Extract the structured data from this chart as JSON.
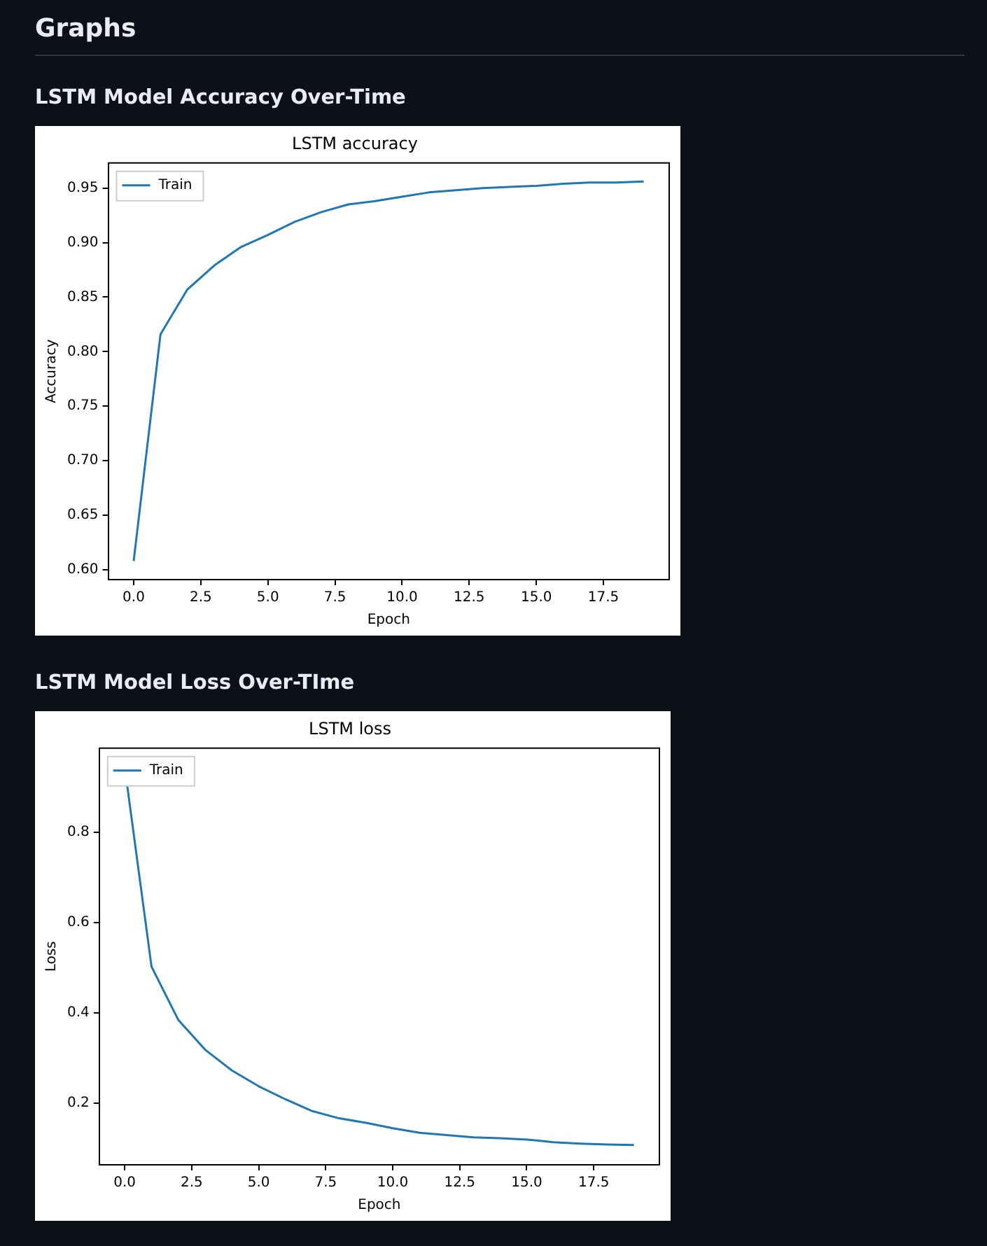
{
  "chart_data": [
    {
      "type": "line",
      "title": "LSTM accuracy",
      "subtitle": "LSTM Model Accuracy Over-Time",
      "annotations": [
        "Graphs"
      ],
      "xlabel": "Epoch",
      "ylabel": "Accuracy",
      "x": [
        0,
        1,
        2,
        3,
        4,
        5,
        6,
        7,
        8,
        9,
        10,
        11,
        12,
        13,
        14,
        15,
        16,
        17,
        18,
        19
      ],
      "series": [
        {
          "name": "Train",
          "color": "#1f77b4",
          "values": [
            0.608,
            0.816,
            0.857,
            0.879,
            0.896,
            0.907,
            0.919,
            0.928,
            0.935,
            0.938,
            0.942,
            0.946,
            0.948,
            0.95,
            0.951,
            0.952,
            0.954,
            0.955,
            0.955,
            0.956
          ]
        }
      ],
      "xlim": [
        -0.95,
        19.95
      ],
      "ylim": [
        0.591,
        0.973
      ],
      "xticks": [
        {
          "value": 0,
          "label": "0.0"
        },
        {
          "value": 2.5,
          "label": "2.5"
        },
        {
          "value": 5,
          "label": "5.0"
        },
        {
          "value": 7.5,
          "label": "7.5"
        },
        {
          "value": 10,
          "label": "10.0"
        },
        {
          "value": 12.5,
          "label": "12.5"
        },
        {
          "value": 15,
          "label": "15.0"
        },
        {
          "value": 17.5,
          "label": "17.5"
        }
      ],
      "yticks": [
        {
          "value": 0.6,
          "label": "0.60"
        },
        {
          "value": 0.65,
          "label": "0.65"
        },
        {
          "value": 0.7,
          "label": "0.70"
        },
        {
          "value": 0.75,
          "label": "0.75"
        },
        {
          "value": 0.8,
          "label": "0.80"
        },
        {
          "value": 0.85,
          "label": "0.85"
        },
        {
          "value": 0.9,
          "label": "0.90"
        },
        {
          "value": 0.95,
          "label": "0.95"
        }
      ],
      "grid": false,
      "legend": "top left",
      "marker": "none",
      "line_style": "solid"
    },
    {
      "type": "line",
      "title": "LSTM loss",
      "subtitle": "LSTM Model Loss Over-TIme",
      "xlabel": "Epoch",
      "ylabel": "Loss",
      "x": [
        0,
        1,
        2,
        3,
        4,
        5,
        6,
        7,
        8,
        9,
        10,
        11,
        12,
        13,
        14,
        15,
        16,
        17,
        18,
        19
      ],
      "series": [
        {
          "name": "Train",
          "color": "#1f77b4",
          "values": [
            0.944,
            0.502,
            0.384,
            0.318,
            0.272,
            0.237,
            0.208,
            0.182,
            0.166,
            0.156,
            0.144,
            0.134,
            0.129,
            0.124,
            0.122,
            0.119,
            0.113,
            0.11,
            0.108,
            0.107
          ]
        }
      ],
      "xlim": [
        -0.95,
        19.95
      ],
      "ylim": [
        0.063,
        0.986
      ],
      "xticks": [
        {
          "value": 0,
          "label": "0.0"
        },
        {
          "value": 2.5,
          "label": "2.5"
        },
        {
          "value": 5,
          "label": "5.0"
        },
        {
          "value": 7.5,
          "label": "7.5"
        },
        {
          "value": 10,
          "label": "10.0"
        },
        {
          "value": 12.5,
          "label": "12.5"
        },
        {
          "value": 15,
          "label": "15.0"
        },
        {
          "value": 17.5,
          "label": "17.5"
        }
      ],
      "yticks": [
        0.2,
        0.4,
        0.6,
        0.8
      ],
      "grid": false,
      "legend": "top left",
      "marker": "none",
      "line_style": "solid"
    }
  ]
}
